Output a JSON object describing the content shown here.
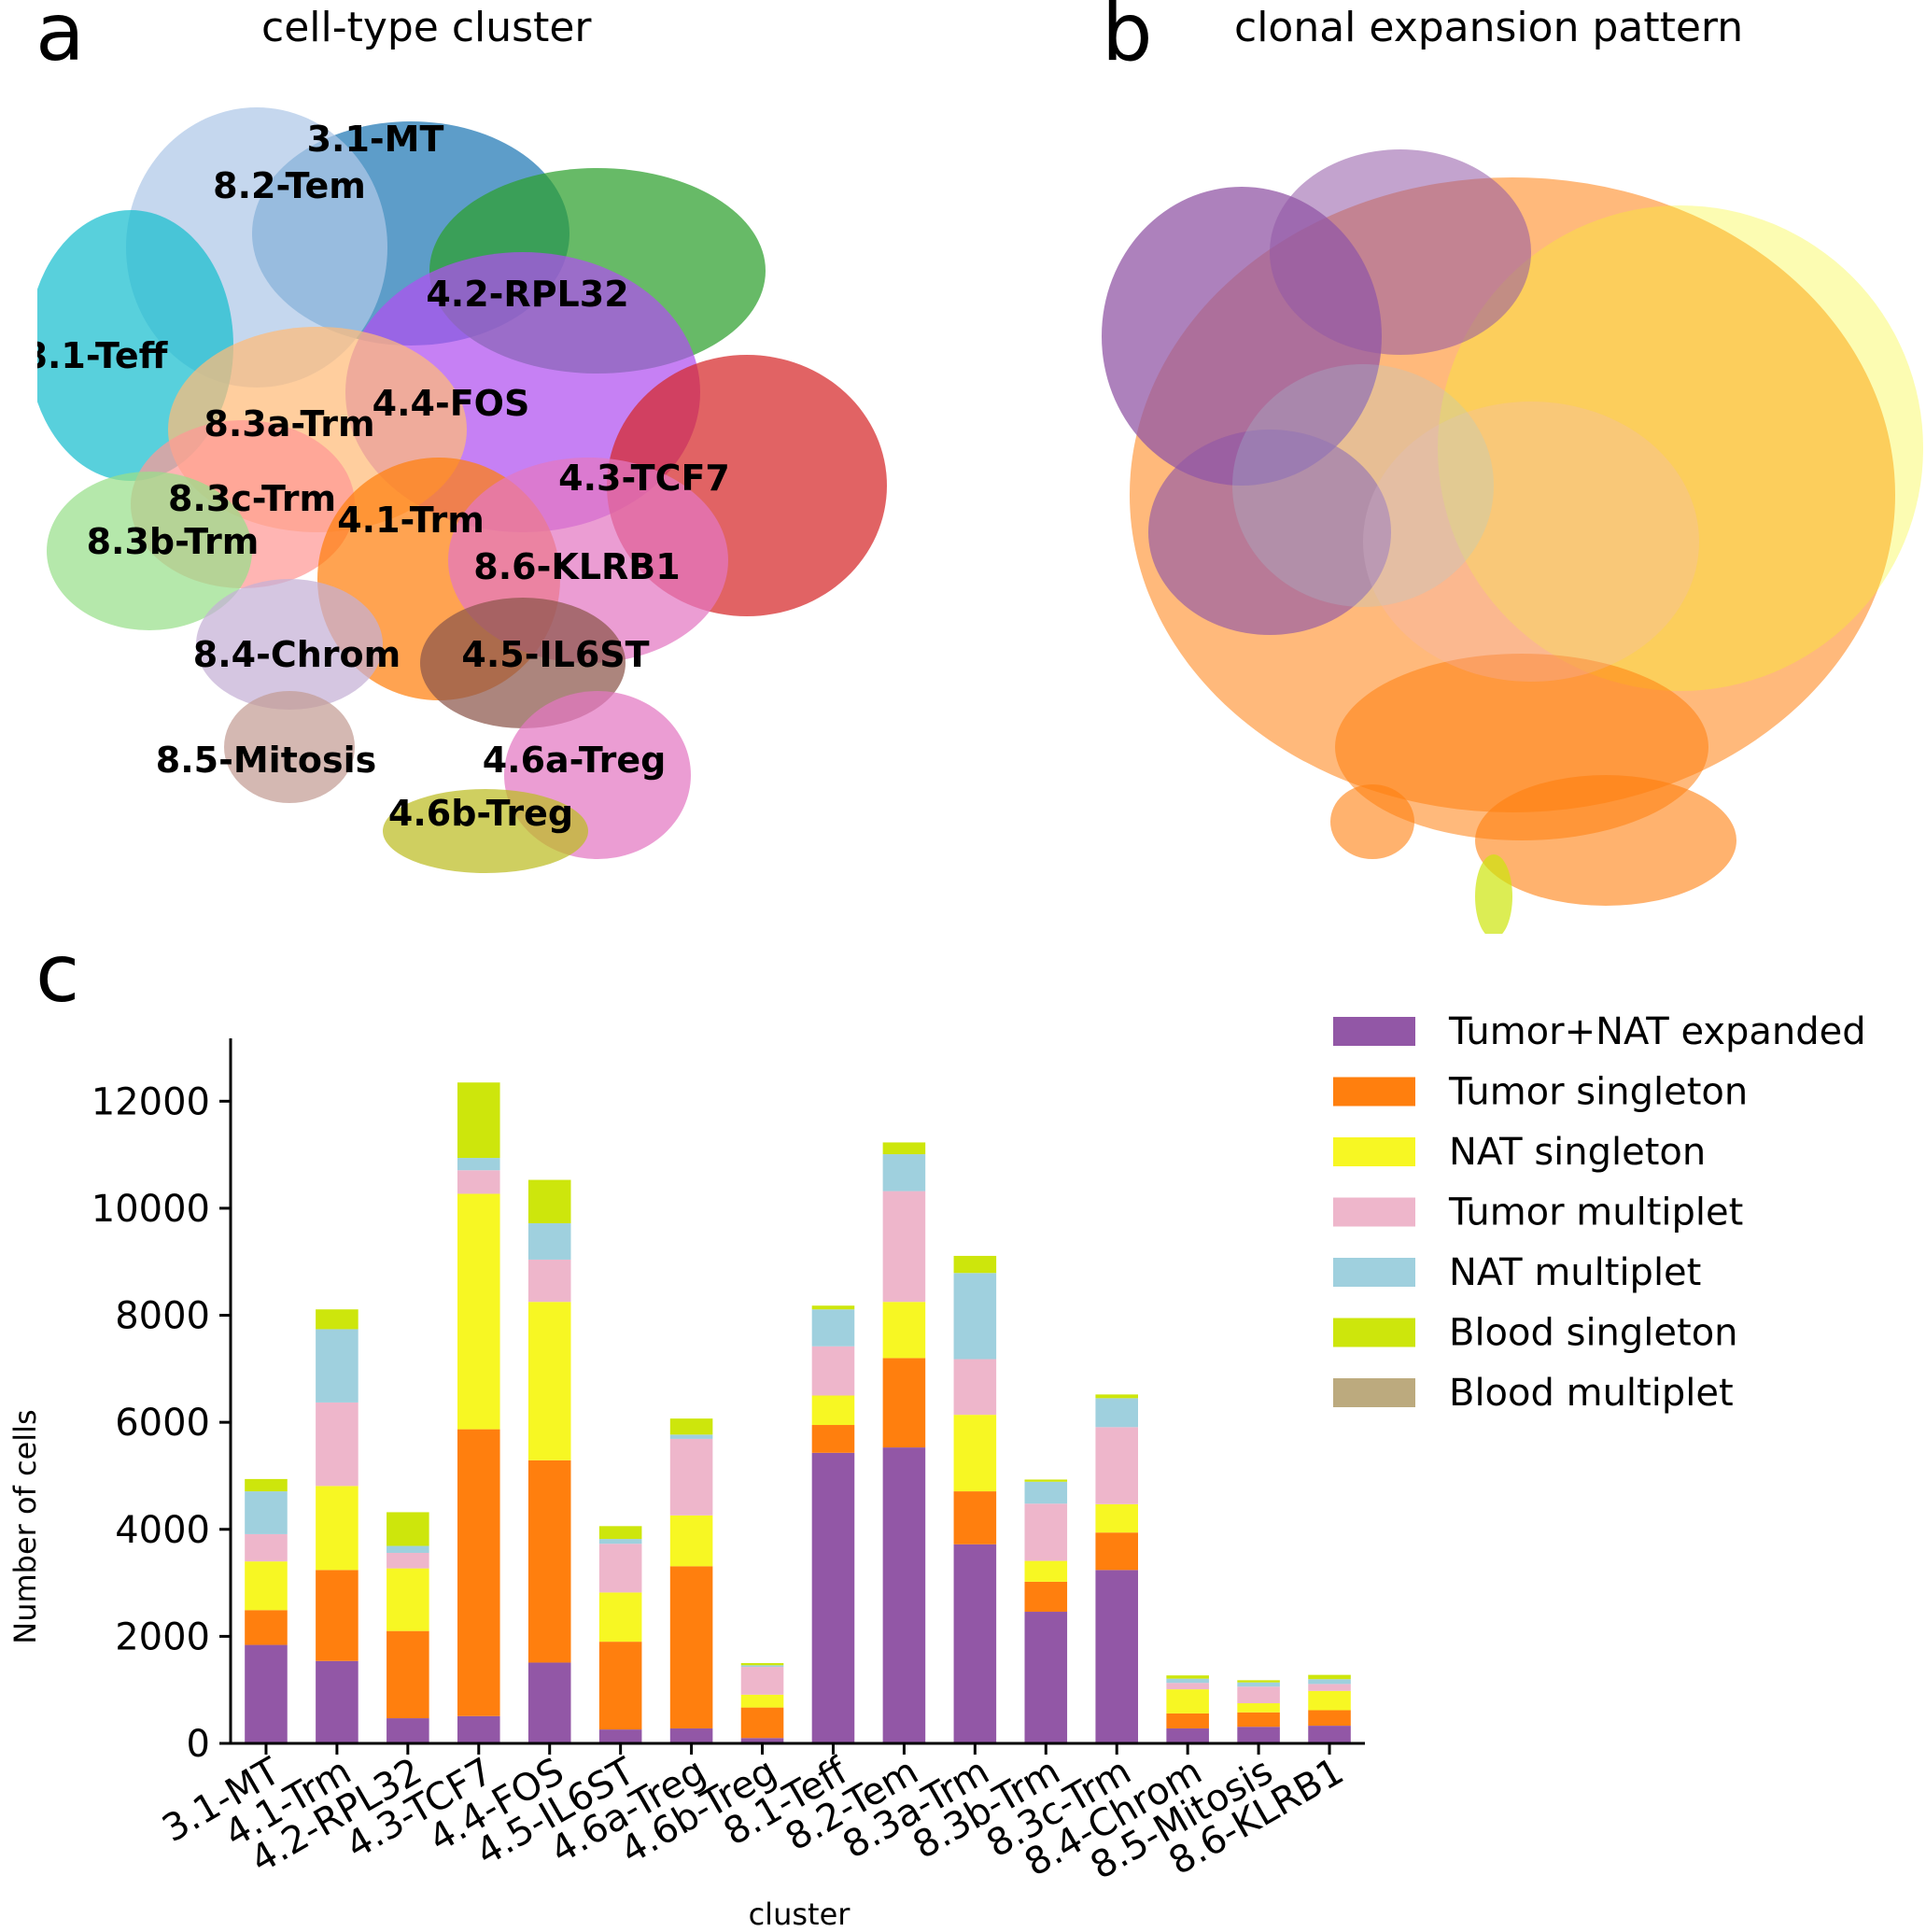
{
  "panels": {
    "a": {
      "letter": "a",
      "title": "cell-type cluster"
    },
    "b": {
      "letter": "b",
      "title": "clonal expansion pattern"
    },
    "c": {
      "letter": "c"
    }
  },
  "umap_clusters": [
    {
      "name": "3.1-MT",
      "color": "#1f77b4"
    },
    {
      "name": "8.2-Tem",
      "color": "#aec7e8"
    },
    {
      "name": "4.2-RPL32",
      "color": "#2ca02c"
    },
    {
      "name": "8.1-Teff",
      "color": "#17becf"
    },
    {
      "name": "4.4-FOS",
      "color": "#b04ff0"
    },
    {
      "name": "8.3a-Trm",
      "color": "#ffbb78"
    },
    {
      "name": "4.3-TCF7",
      "color": "#d62728"
    },
    {
      "name": "8.3c-Trm",
      "color": "#ff9896"
    },
    {
      "name": "4.1-Trm",
      "color": "#ff7f0e"
    },
    {
      "name": "8.3b-Trm",
      "color": "#98df8a"
    },
    {
      "name": "8.6-KLRB1",
      "color": "#e377c2"
    },
    {
      "name": "8.4-Chrom",
      "color": "#c5b0d5"
    },
    {
      "name": "4.5-IL6ST",
      "color": "#8c564b"
    },
    {
      "name": "8.5-Mitosis",
      "color": "#c49c94"
    },
    {
      "name": "4.6a-Treg",
      "color": "#e377c2"
    },
    {
      "name": "4.6b-Treg",
      "color": "#bcbd22"
    }
  ],
  "chart_data": {
    "type": "bar",
    "stacked": true,
    "xlabel": "cluster",
    "ylabel": "Number of cells",
    "ylim": [
      0,
      13000
    ],
    "yticks": [
      0,
      2000,
      4000,
      6000,
      8000,
      10000,
      12000
    ],
    "legend_position": "top-right",
    "categories": [
      "3.1-MT",
      "4.1-Trm",
      "4.2-RPL32",
      "4.3-TCF7",
      "4.4-FOS",
      "4.5-IL6ST",
      "4.6a-Treg",
      "4.6b-Treg",
      "8.1-Teff",
      "8.2-Tem",
      "8.3a-Trm",
      "8.3b-Trm",
      "8.3c-Trm",
      "8.4-Chrom",
      "8.5-Mitosis",
      "8.6-KLRB1"
    ],
    "series": [
      {
        "name": "Tumor+NAT expanded",
        "color": "#9257a6",
        "values": [
          1840,
          1540,
          470,
          510,
          1510,
          260,
          280,
          100,
          5430,
          5530,
          3720,
          2460,
          3240,
          280,
          310,
          330
        ]
      },
      {
        "name": "Tumor singleton",
        "color": "#ff7f0e",
        "values": [
          650,
          1700,
          1630,
          5360,
          3780,
          1640,
          3030,
          570,
          520,
          1670,
          990,
          560,
          700,
          280,
          270,
          290
        ]
      },
      {
        "name": "NAT singleton",
        "color": "#f7f723",
        "values": [
          910,
          1570,
          1170,
          4400,
          2960,
          920,
          950,
          240,
          550,
          1050,
          1430,
          390,
          530,
          450,
          170,
          360
        ]
      },
      {
        "name": "Tumor multiplet",
        "color": "#eeb6cb",
        "values": [
          510,
          1560,
          290,
          440,
          790,
          910,
          1430,
          520,
          920,
          2070,
          1040,
          1070,
          1440,
          120,
          310,
          130
        ]
      },
      {
        "name": "NAT multiplet",
        "color": "#9fd0de",
        "values": [
          800,
          1370,
          130,
          230,
          680,
          90,
          80,
          30,
          690,
          690,
          1610,
          410,
          540,
          80,
          80,
          90
        ]
      },
      {
        "name": "Blood singleton",
        "color": "#cde60c",
        "values": [
          230,
          370,
          630,
          1410,
          810,
          240,
          300,
          40,
          70,
          220,
          320,
          40,
          70,
          60,
          40,
          80
        ]
      },
      {
        "name": "Blood multiplet",
        "color": "#bcaa7e",
        "values": [
          0,
          0,
          0,
          0,
          0,
          0,
          0,
          0,
          0,
          0,
          0,
          0,
          0,
          0,
          0,
          0
        ]
      }
    ]
  }
}
